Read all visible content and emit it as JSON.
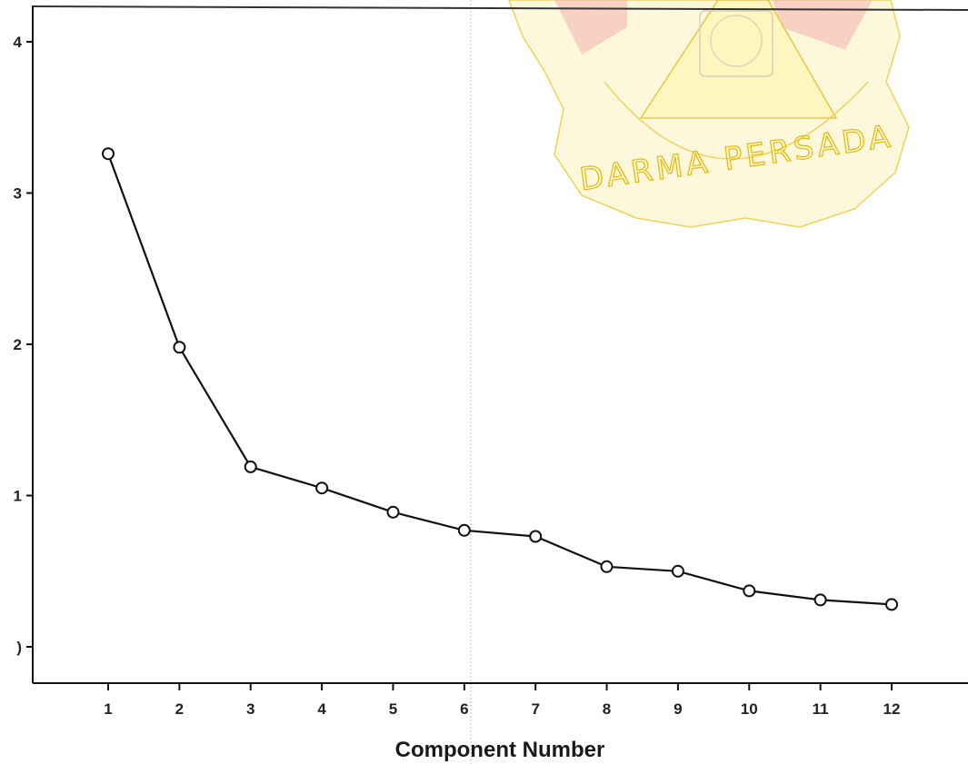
{
  "chart_data": {
    "type": "line",
    "title": "",
    "xlabel": "Component Number",
    "ylabel": "",
    "x": [
      1,
      2,
      3,
      4,
      5,
      6,
      7,
      8,
      9,
      10,
      11,
      12
    ],
    "values": [
      3.26,
      1.98,
      1.19,
      1.05,
      0.89,
      0.77,
      0.73,
      0.53,
      0.5,
      0.37,
      0.31,
      0.28
    ],
    "xlim": [
      0,
      13
    ],
    "ylim": [
      -0.2,
      4.2
    ],
    "x_ticks": [
      "1",
      "2",
      "3",
      "4",
      "5",
      "6",
      "7",
      "8",
      "9",
      "10",
      "11",
      "12"
    ],
    "y_ticks": [
      {
        "value": 0,
        "label": ")"
      },
      {
        "value": 1,
        "label": "1"
      },
      {
        "value": 2,
        "label": "2"
      },
      {
        "value": 3,
        "label": "3"
      },
      {
        "value": 4,
        "label": "4"
      }
    ],
    "marker": "open-circle",
    "grid": false,
    "line_color": "#111111"
  },
  "watermark": {
    "text": "DARMA PERSADA",
    "colors": {
      "fill": "#fbf1b4",
      "stroke": "#e6b800",
      "accent": "#d04a4a"
    }
  }
}
